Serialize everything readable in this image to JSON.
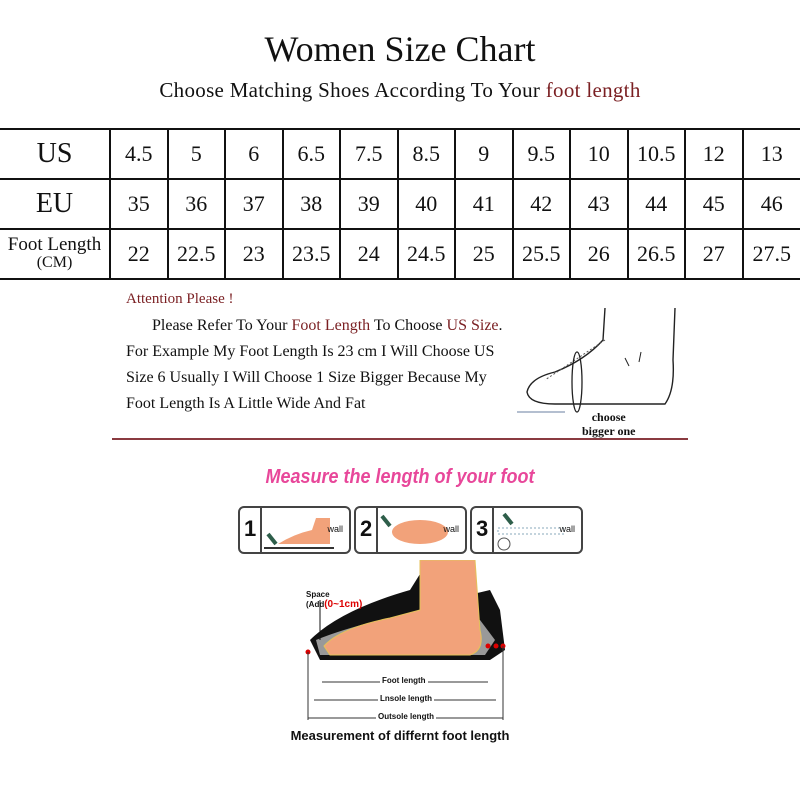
{
  "title": "Women Size Chart",
  "subtitle": {
    "prefix": "Choose Matching Shoes According To Your ",
    "highlight": "foot length"
  },
  "table": {
    "rows": [
      {
        "label": "US",
        "values": [
          "4.5",
          "5",
          "6",
          "6.5",
          "7.5",
          "8.5",
          "9",
          "9.5",
          "10",
          "10.5",
          "12",
          "13"
        ]
      },
      {
        "label": "EU",
        "values": [
          "35",
          "36",
          "37",
          "38",
          "39",
          "40",
          "41",
          "42",
          "43",
          "44",
          "45",
          "46"
        ]
      },
      {
        "label": "Foot Length",
        "label_unit": "(CM)",
        "values": [
          "22",
          "22.5",
          "23",
          "23.5",
          "24",
          "24.5",
          "25",
          "25.5",
          "26",
          "26.5",
          "27",
          "27.5"
        ]
      }
    ]
  },
  "notes": {
    "attention": "Attention Please !",
    "line1_a": "Please Refer To Your ",
    "line1_b": "Foot Length",
    "line1_c": " To Choose ",
    "line1_d": "US Size",
    ".": ".",
    "line2": "For Example My Foot Length Is 23 cm I Will Choose US",
    "line3": "Size 6 Usually I Will Choose 1 Size Bigger Because My",
    "line4": "Foot Length Is A Little Wide And Fat",
    "choose1": "choose",
    "choose2": "bigger one"
  },
  "measure": {
    "title": "Measure the length of your foot",
    "steps": [
      {
        "num": "1",
        "wall": "wall"
      },
      {
        "num": "2",
        "wall": "wall"
      },
      {
        "num": "3",
        "wall": "wall"
      }
    ],
    "space": "Space",
    "add": "(Add",
    "add_value": "(0~1cm)",
    "foot_length": "Foot length",
    "insole_length": "Lnsole length",
    "outsole_length": "Outsole length",
    "caption": "Measurement of differnt foot length"
  },
  "colors": {
    "accent_red": "#7a1f22",
    "pink": "#e8479a",
    "skin": "#f2a27a"
  }
}
